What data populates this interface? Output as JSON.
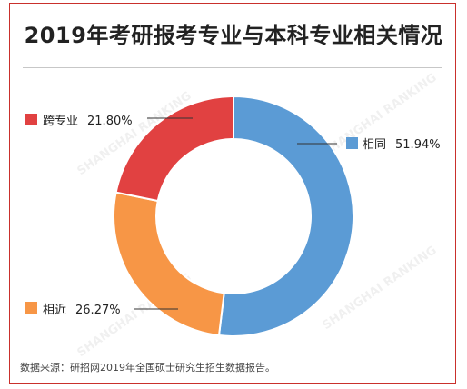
{
  "title": "2019年考研报考专业与本科专业相关情况",
  "source": "数据来源：研招网2019年全国硕士研究生招生数据报告。",
  "watermark": "SHANGHAI RANKING",
  "chart_data": {
    "type": "pie",
    "style": "donut",
    "title": "2019年考研报考专业与本科专业相关情况",
    "slices": [
      {
        "label": "相同",
        "value": 51.94,
        "display": "51.94%",
        "color": "#5b9bd5"
      },
      {
        "label": "相近",
        "value": 26.27,
        "display": "26.27%",
        "color": "#f79646"
      },
      {
        "label": "跨专业",
        "value": 21.8,
        "display": "21.80%",
        "color": "#e14141"
      }
    ]
  }
}
